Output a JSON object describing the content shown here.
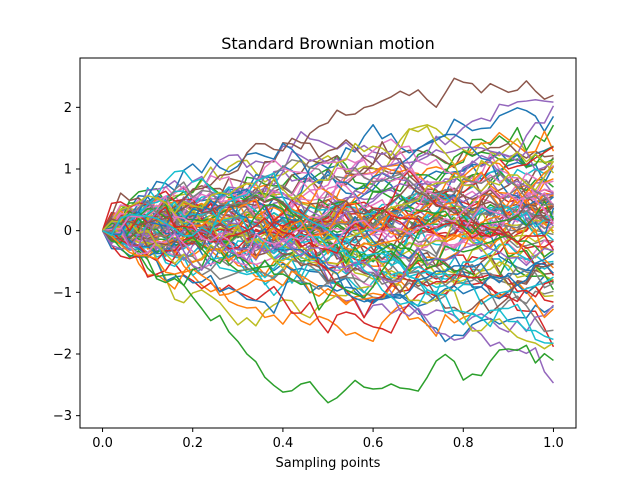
{
  "chart_data": {
    "type": "line",
    "title": "Standard Brownian motion",
    "xlabel": "Sampling points",
    "ylabel": "",
    "xlim": [
      -0.05,
      1.05
    ],
    "ylim": [
      -3.2,
      2.8
    ],
    "xticks": [
      0.0,
      0.2,
      0.4,
      0.6,
      0.8,
      1.0
    ],
    "xtick_labels": [
      "0.0",
      "0.2",
      "0.4",
      "0.6",
      "0.8",
      "1.0"
    ],
    "yticks": [
      -3,
      -2,
      -1,
      0,
      1,
      2
    ],
    "ytick_labels": [
      "−3",
      "−2",
      "−1",
      "0",
      "1",
      "2"
    ],
    "grid": false,
    "legend": "none",
    "n_paths": 100,
    "n_steps": 50,
    "colors": [
      "#1f77b4",
      "#ff7f0e",
      "#2ca02c",
      "#d62728",
      "#9467bd",
      "#8c564b",
      "#e377c2",
      "#7f7f7f",
      "#bcbd22",
      "#17becf"
    ]
  }
}
